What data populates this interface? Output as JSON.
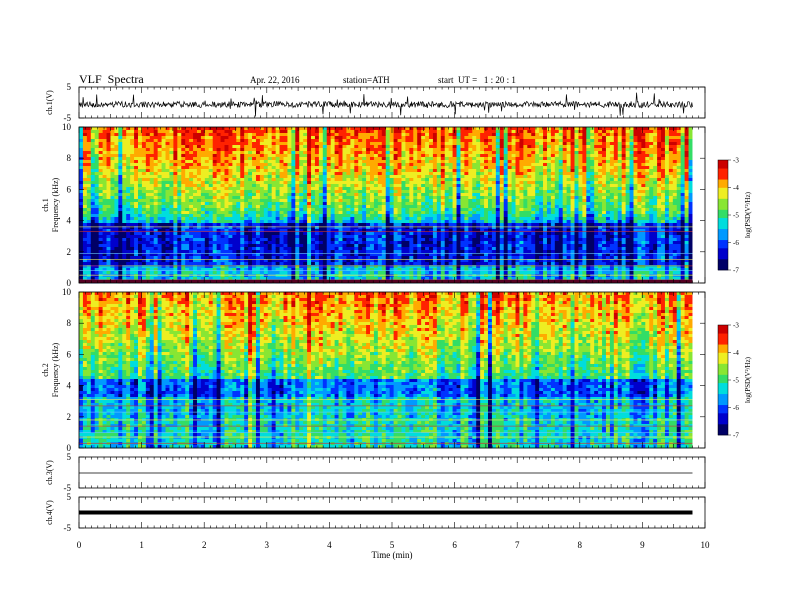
{
  "header": {
    "title": "VLF  Spectra",
    "date": "Apr. 22, 2016",
    "station": "station=ATH",
    "start": "start  UT =   1 : 20 : 1"
  },
  "chart_data": [
    {
      "type": "line",
      "ylabel": "ch.1(V)",
      "ylim": [
        -5,
        5
      ],
      "y_ticks": [
        "5",
        "-5"
      ],
      "xlim": [
        0,
        10
      ],
      "trace": "noisy waveform around 0 V with spikes"
    },
    {
      "type": "heatmap",
      "ylabel": "ch.1\nFrequency (kHz)",
      "ylim": [
        0,
        10
      ],
      "y_ticks": [
        "0",
        "2",
        "4",
        "6",
        "8",
        "10"
      ],
      "xlim": [
        0,
        10
      ],
      "data_end_min": 9.8,
      "colorbar": {
        "label": "log(PSD(V²/Hz)",
        "range": [
          -7,
          -3
        ],
        "ticks": [
          "-3",
          "-4",
          "-5",
          "-6",
          "-7"
        ]
      }
    },
    {
      "type": "heatmap",
      "ylabel": "ch.2\nFrequency (kHz)",
      "ylim": [
        0,
        10
      ],
      "y_ticks": [
        "0",
        "2",
        "4",
        "6",
        "8",
        "10"
      ],
      "xlim": [
        0,
        10
      ],
      "data_end_min": 9.8,
      "colorbar": {
        "label": "log(PSD(V²/Hz)",
        "range": [
          -7,
          -3
        ],
        "ticks": [
          "-3",
          "-4",
          "-5",
          "-6",
          "-7"
        ]
      }
    },
    {
      "type": "line",
      "ylabel": "ch.3(V)",
      "ylim": [
        -5,
        5
      ],
      "y_ticks": [
        "5",
        "-5"
      ],
      "xlim": [
        0,
        10
      ],
      "trace": "flat line near 0 V"
    },
    {
      "type": "line",
      "ylabel": "ch.4(V)",
      "ylim": [
        -5,
        5
      ],
      "y_ticks": [
        "5",
        "-5"
      ],
      "xlim": [
        0,
        10
      ],
      "trace": "thick flat line near 0 V"
    }
  ],
  "x_axis": {
    "label": "Time  (min)",
    "ticks": [
      "0",
      "1",
      "2",
      "3",
      "4",
      "5",
      "6",
      "7",
      "8",
      "9",
      "10"
    ]
  },
  "colors": {
    "colormap": [
      "#000066",
      "#0000cc",
      "#0033ff",
      "#0099ff",
      "#00dddd",
      "#33dd66",
      "#88e633",
      "#eeee22",
      "#ffaa00",
      "#ff2200",
      "#cc0000",
      "#ffffff"
    ]
  }
}
